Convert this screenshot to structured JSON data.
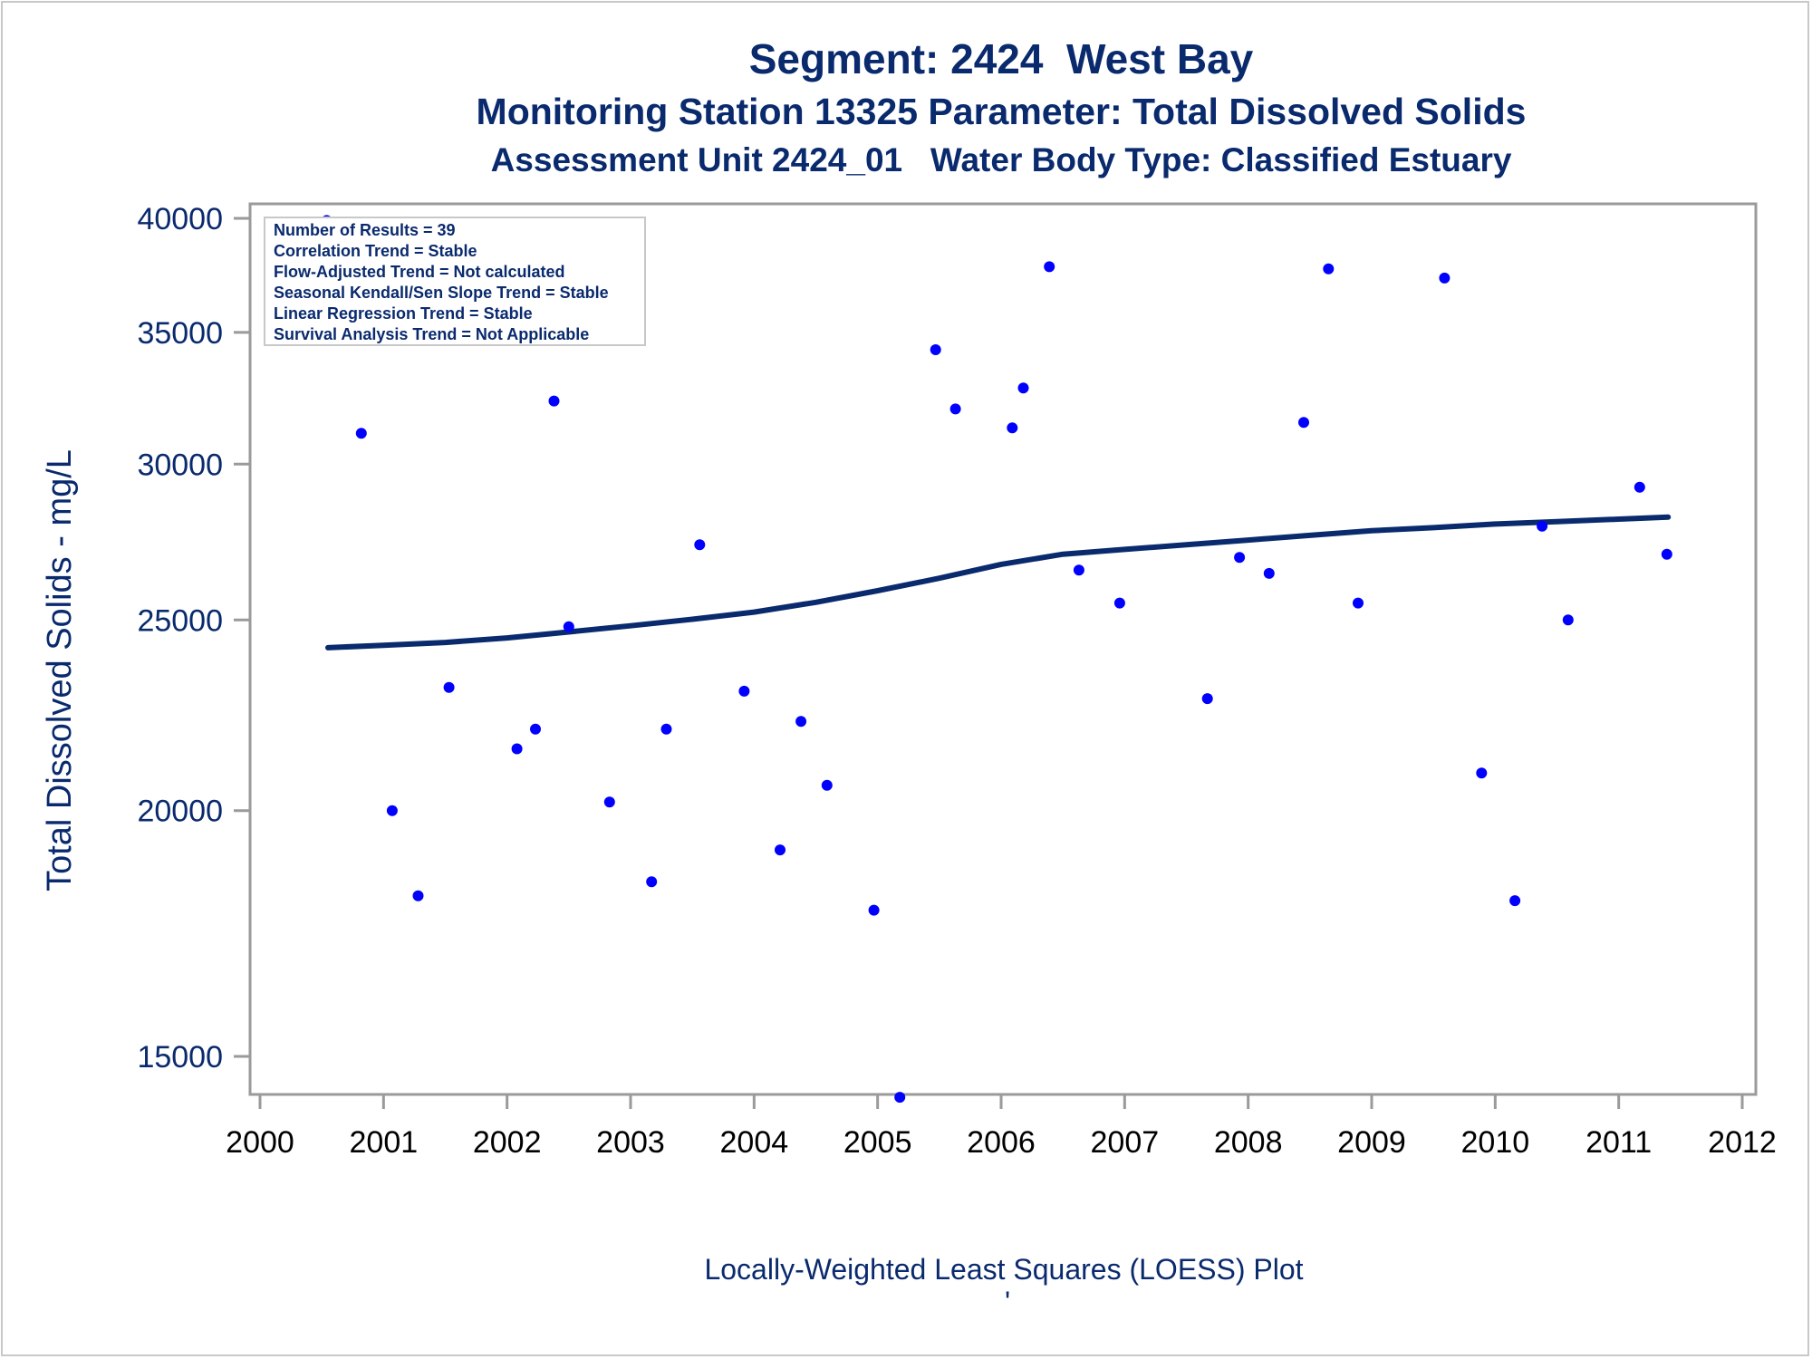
{
  "header": {
    "title": "Segment: 2424  West Bay",
    "subtitle": "Monitoring Station 13325 Parameter: Total Dissolved Solids",
    "subtitle2": "Assessment Unit 2424_01   Water Body Type: Classified Estuary"
  },
  "footer": {
    "mark": "'"
  },
  "chart_data": {
    "type": "scatter",
    "title": "Segment: 2424  West Bay",
    "xlabel": "Locally-Weighted Least Squares (LOESS) Plot",
    "ylabel": "Total Dissolved Solids - mg/L",
    "xlim": [
      2000,
      2012
    ],
    "ylim": [
      13500,
      40000
    ],
    "y_scale": "log",
    "x_ticks": [
      "2000",
      "2001",
      "2002",
      "2003",
      "2004",
      "2005",
      "2006",
      "2007",
      "2008",
      "2009",
      "2010",
      "2011",
      "2012"
    ],
    "y_ticks": [
      "15000",
      "20000",
      "25000",
      "30000",
      "35000",
      "40000"
    ],
    "grid": false,
    "colors": {
      "points": "#0000ff",
      "line": "#0a2a6e",
      "text": "#0a2a6e",
      "frame": "#9a9a9a"
    },
    "inset_notes": [
      "Number of Results = 39",
      "Correlation Trend = Stable",
      "Flow-Adjusted Trend = Not calculated",
      "Seasonal Kendall/Sen Slope Trend = Stable",
      "Linear Regression Trend = Stable",
      "Survival Analysis Trend = Not Applicable"
    ],
    "series": [
      {
        "type": "scatter",
        "x": [
          2000.54,
          2000.82,
          2001.07,
          2001.28,
          2001.53,
          2002.08,
          2002.23,
          2002.38,
          2002.5,
          2002.83,
          2003.17,
          2003.29,
          2003.56,
          2003.92,
          2004.21,
          2004.38,
          2004.59,
          2004.97,
          2005.18,
          2005.47,
          2005.63,
          2006.09,
          2006.18,
          2006.39,
          2006.63,
          2006.96,
          2007.67,
          2007.93,
          2008.17,
          2008.45,
          2008.65,
          2008.89,
          2009.59,
          2009.89,
          2010.16,
          2010.38,
          2010.59,
          2011.17,
          2011.39
        ],
        "values": [
          39900,
          31100,
          20000,
          18100,
          23100,
          21500,
          22000,
          32300,
          24800,
          20200,
          18400,
          22000,
          27300,
          23000,
          19100,
          22200,
          20600,
          17800,
          14300,
          34300,
          32000,
          31300,
          32800,
          37800,
          26500,
          25500,
          22800,
          26900,
          26400,
          31500,
          37700,
          25500,
          37300,
          20900,
          18000,
          27900,
          25000,
          29200,
          27000
        ]
      },
      {
        "type": "line",
        "x": [
          2000.55,
          2001.0,
          2001.5,
          2002.0,
          2002.5,
          2003.0,
          2003.5,
          2004.0,
          2004.5,
          2005.0,
          2005.5,
          2006.0,
          2006.5,
          2007.0,
          2007.5,
          2008.0,
          2008.5,
          2009.0,
          2009.5,
          2010.0,
          2010.5,
          2011.0,
          2011.4
        ],
        "values": [
          24200,
          24270,
          24350,
          24480,
          24650,
          24830,
          25020,
          25230,
          25520,
          25870,
          26250,
          26680,
          27000,
          27150,
          27300,
          27450,
          27600,
          27750,
          27850,
          27970,
          28050,
          28130,
          28200
        ]
      }
    ]
  }
}
